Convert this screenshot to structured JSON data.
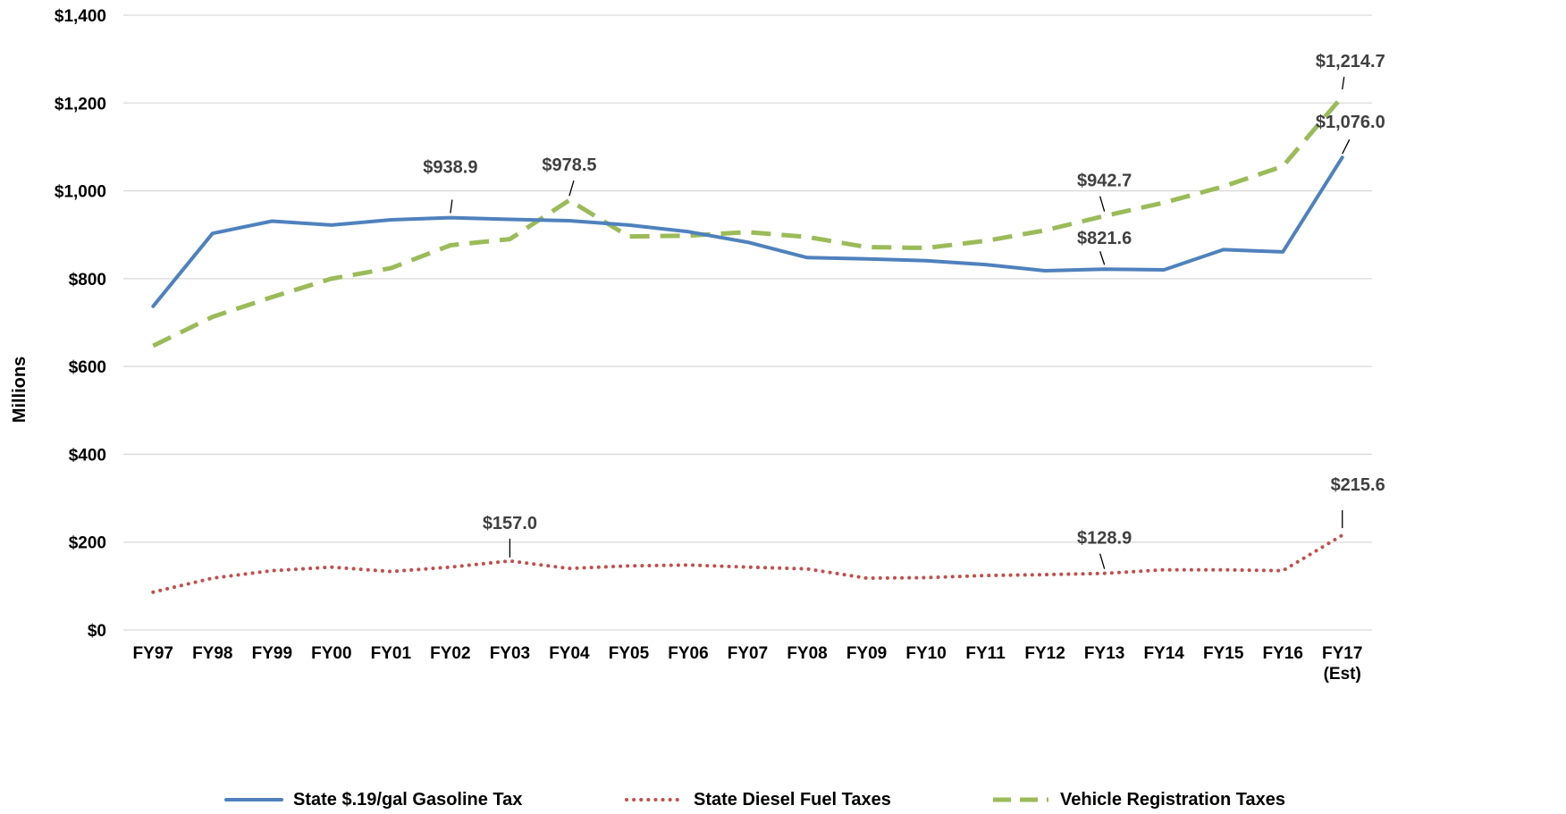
{
  "chart_data": {
    "type": "line",
    "categories": [
      "FY97",
      "FY98",
      "FY99",
      "FY00",
      "FY01",
      "FY02",
      "FY03",
      "FY04",
      "FY05",
      "FY06",
      "FY07",
      "FY08",
      "FY09",
      "FY10",
      "FY11",
      "FY12",
      "FY13",
      "FY14",
      "FY15",
      "FY16",
      "FY17 (Est)"
    ],
    "category_lines": [
      [
        "FY97"
      ],
      [
        "FY98"
      ],
      [
        "FY99"
      ],
      [
        "FY00"
      ],
      [
        "FY01"
      ],
      [
        "FY02"
      ],
      [
        "FY03"
      ],
      [
        "FY04"
      ],
      [
        "FY05"
      ],
      [
        "FY06"
      ],
      [
        "FY07"
      ],
      [
        "FY08"
      ],
      [
        "FY09"
      ],
      [
        "FY10"
      ],
      [
        "FY11"
      ],
      [
        "FY12"
      ],
      [
        "FY13"
      ],
      [
        "FY14"
      ],
      [
        "FY15"
      ],
      [
        "FY16"
      ],
      [
        "FY17",
        "(Est)"
      ]
    ],
    "ylabel": "Millions",
    "ylim": [
      0,
      1400
    ],
    "yticks": [
      0,
      200,
      400,
      600,
      800,
      1000,
      1200,
      1400
    ],
    "ytick_labels": [
      "$0",
      "$200",
      "$400",
      "$600",
      "$800",
      "$1,000",
      "$1,200",
      "$1,400"
    ],
    "grid": true,
    "legend_position": "bottom",
    "series": [
      {
        "name": "State $.19/gal Gasoline Tax",
        "color": "#4F81BD",
        "style": "solid",
        "values": [
          737,
          903,
          931,
          922,
          934,
          938.9,
          935,
          932,
          922,
          907,
          883,
          848,
          845,
          841,
          832,
          818,
          821.6,
          820,
          866,
          861,
          1076.0
        ],
        "labels": [
          {
            "index": 5,
            "text": "$938.9"
          },
          {
            "index": 16,
            "text": "$821.6"
          },
          {
            "index": 20,
            "text": "$1,076.0"
          }
        ]
      },
      {
        "name": "State Diesel Fuel Taxes",
        "color": "#C0504D",
        "style": "dotted",
        "values": [
          86,
          118,
          135,
          143,
          133,
          143,
          157.0,
          140,
          146,
          148,
          143,
          139,
          118,
          119,
          124,
          126,
          128.9,
          137,
          137,
          135,
          215.6
        ],
        "labels": [
          {
            "index": 6,
            "text": "$157.0"
          },
          {
            "index": 16,
            "text": "$128.9"
          },
          {
            "index": 20,
            "text": "$215.6"
          }
        ]
      },
      {
        "name": "Vehicle Registration Taxes",
        "color": "#9BBB59",
        "style": "dashed",
        "values": [
          647,
          713,
          758,
          800,
          824,
          876,
          890,
          978.5,
          896,
          898,
          906,
          895,
          872,
          870,
          886,
          910,
          942.7,
          973,
          1010,
          1056,
          1214.7
        ],
        "labels": [
          {
            "index": 7,
            "text": "$978.5"
          },
          {
            "index": 16,
            "text": "$942.7"
          },
          {
            "index": 20,
            "text": "$1,214.7"
          }
        ]
      }
    ]
  }
}
